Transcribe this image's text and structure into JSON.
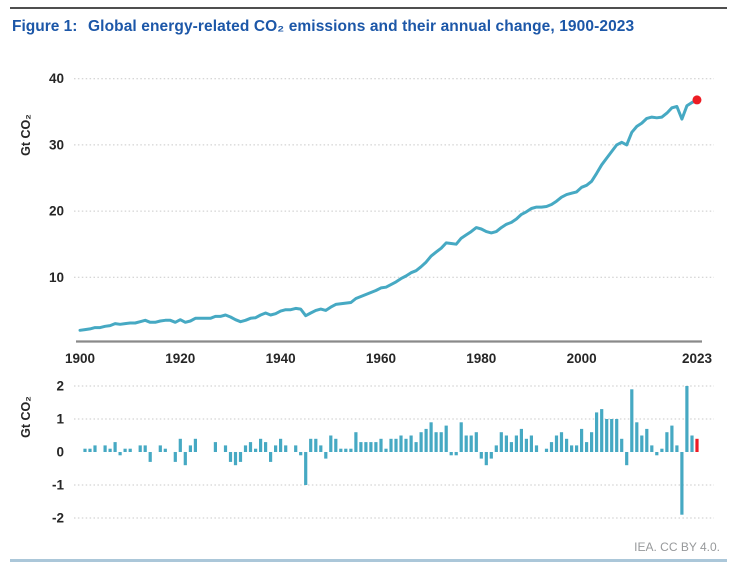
{
  "header": {
    "figure_label": "Figure 1:",
    "title": "Global energy-related CO₂ emissions and their annual change, 1900-2023"
  },
  "footer": {
    "attribution": "IEA. CC BY 4.0."
  },
  "colors": {
    "series_teal": "#46a9c3",
    "highlight_red": "#ed1c24",
    "title_blue": "#1c57a8",
    "grid_gray": "#c9c9c9",
    "axis_gray": "#8a8a8a",
    "tick_text": "#262626",
    "bottom_rule_blue": "#abc7d9"
  },
  "chart_data": [
    {
      "type": "line",
      "name": "global-co2-emissions",
      "title": "Global energy-related CO₂ emissions",
      "ylabel": "Gt CO₂",
      "xlabel": "",
      "ylim": [
        0,
        40
      ],
      "yticks": [
        10,
        20,
        30,
        40
      ],
      "xticks": [
        1900,
        1920,
        1940,
        1960,
        1980,
        2000,
        2023
      ],
      "grid": "horizontal-dotted",
      "legend": "none",
      "x": {
        "start": 1900,
        "end": 2023,
        "step": 1
      },
      "values": [
        2.0,
        2.1,
        2.2,
        2.4,
        2.4,
        2.6,
        2.7,
        3.0,
        2.9,
        3.0,
        3.1,
        3.1,
        3.3,
        3.5,
        3.2,
        3.2,
        3.4,
        3.5,
        3.5,
        3.2,
        3.6,
        3.2,
        3.4,
        3.8,
        3.8,
        3.8,
        3.8,
        4.1,
        4.1,
        4.3,
        4.0,
        3.6,
        3.3,
        3.5,
        3.8,
        3.9,
        4.3,
        4.6,
        4.3,
        4.5,
        4.9,
        5.1,
        5.1,
        5.3,
        5.2,
        4.2,
        4.6,
        5.0,
        5.2,
        5.0,
        5.5,
        5.9,
        6.0,
        6.1,
        6.2,
        6.8,
        7.1,
        7.4,
        7.7,
        8.0,
        8.4,
        8.5,
        8.9,
        9.3,
        9.8,
        10.2,
        10.7,
        11.0,
        11.6,
        12.3,
        13.2,
        13.8,
        14.4,
        15.2,
        15.1,
        15.0,
        15.9,
        16.4,
        16.9,
        17.5,
        17.3,
        16.9,
        16.7,
        16.9,
        17.5,
        18.0,
        18.3,
        18.8,
        19.5,
        19.9,
        20.4,
        20.6,
        20.6,
        20.7,
        21.0,
        21.5,
        22.1,
        22.5,
        22.7,
        22.9,
        23.6,
        23.9,
        24.5,
        25.7,
        27.0,
        28.0,
        29.0,
        30.0,
        30.4,
        30.0,
        31.9,
        32.8,
        33.3,
        34.0,
        34.2,
        34.1,
        34.2,
        34.8,
        35.6,
        35.8,
        33.9,
        35.9,
        36.4,
        36.8
      ],
      "highlight_point": {
        "year": 2023,
        "value": 36.8,
        "style": "red-dot"
      }
    },
    {
      "type": "bar",
      "name": "annual-change",
      "title": "Annual change of CO₂ emissions",
      "ylabel": "Gt CO₂",
      "xlabel": "",
      "ylim": [
        -2,
        2
      ],
      "yticks": [
        -2,
        -1,
        0,
        1,
        2
      ],
      "grid": "horizontal-dotted",
      "legend": "none",
      "x": {
        "start": 1901,
        "end": 2023,
        "step": 1
      },
      "values": [
        0.1,
        0.1,
        0.2,
        0.0,
        0.2,
        0.1,
        0.3,
        -0.1,
        0.1,
        0.1,
        0.0,
        0.2,
        0.2,
        -0.3,
        0.0,
        0.2,
        0.1,
        0.0,
        -0.3,
        0.4,
        -0.4,
        0.2,
        0.4,
        0.0,
        0.0,
        0.0,
        0.3,
        0.0,
        0.2,
        -0.3,
        -0.4,
        -0.3,
        0.2,
        0.3,
        0.1,
        0.4,
        0.3,
        -0.3,
        0.2,
        0.4,
        0.2,
        0.0,
        0.2,
        -0.1,
        -1.0,
        0.4,
        0.4,
        0.2,
        -0.2,
        0.5,
        0.4,
        0.1,
        0.1,
        0.1,
        0.6,
        0.3,
        0.3,
        0.3,
        0.3,
        0.4,
        0.1,
        0.4,
        0.4,
        0.5,
        0.4,
        0.5,
        0.3,
        0.6,
        0.7,
        0.9,
        0.6,
        0.6,
        0.8,
        -0.1,
        -0.1,
        0.9,
        0.5,
        0.5,
        0.6,
        -0.2,
        -0.4,
        -0.2,
        0.2,
        0.6,
        0.5,
        0.3,
        0.5,
        0.7,
        0.4,
        0.5,
        0.2,
        0.0,
        0.1,
        0.3,
        0.5,
        0.6,
        0.4,
        0.2,
        0.2,
        0.7,
        0.3,
        0.6,
        1.2,
        1.3,
        1.0,
        1.0,
        1.0,
        0.4,
        -0.4,
        1.9,
        0.9,
        0.5,
        0.7,
        0.2,
        -0.1,
        0.1,
        0.6,
        0.8,
        0.2,
        -1.9,
        2.0,
        0.5,
        0.4
      ],
      "highlight_bar": {
        "year": 2023,
        "value": 0.4,
        "style": "red-bar"
      }
    }
  ]
}
